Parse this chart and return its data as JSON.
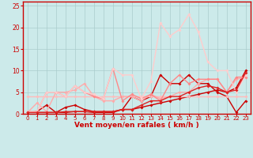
{
  "background_color": "#cceaea",
  "grid_color": "#aacccc",
  "xlabel": "Vent moyen/en rafales ( km/h )",
  "xlabel_color": "#cc0000",
  "tick_color": "#cc0000",
  "ylim": [
    0,
    26
  ],
  "xlim": [
    -0.5,
    23.5
  ],
  "yticks": [
    0,
    5,
    10,
    15,
    20,
    25
  ],
  "xticks": [
    0,
    1,
    2,
    3,
    4,
    5,
    6,
    7,
    8,
    9,
    10,
    11,
    12,
    13,
    14,
    15,
    16,
    17,
    18,
    19,
    20,
    21,
    22,
    23
  ],
  "series": [
    {
      "x": [
        0,
        1,
        2,
        3,
        4,
        5,
        6,
        7,
        8,
        9,
        10,
        11,
        12,
        13,
        14,
        15,
        16,
        17,
        18,
        19,
        20,
        21,
        22,
        23
      ],
      "y": [
        0.3,
        0.3,
        0.3,
        0.3,
        0.3,
        0.5,
        0.5,
        0.3,
        0.3,
        0.3,
        1,
        1,
        1.5,
        2,
        2.5,
        3,
        3.5,
        4,
        4.5,
        5,
        5.5,
        5,
        6,
        10
      ],
      "color": "#cc0000",
      "linewidth": 1.0
    },
    {
      "x": [
        0,
        1,
        2,
        3,
        4,
        5,
        6,
        7,
        8,
        9,
        10,
        11,
        12,
        13,
        14,
        15,
        16,
        17,
        18,
        19,
        20,
        21,
        22,
        23
      ],
      "y": [
        0.3,
        0.5,
        2,
        0.3,
        1.5,
        2,
        1,
        0.5,
        0.5,
        0.5,
        1,
        4,
        3,
        4,
        9,
        7,
        7,
        9,
        7,
        7,
        5,
        4,
        0.3,
        3
      ],
      "color": "#cc0000",
      "linewidth": 1.0
    },
    {
      "x": [
        0,
        1,
        2,
        3,
        4,
        5,
        6,
        7,
        8,
        9,
        10,
        11,
        12,
        13,
        14,
        15,
        16,
        17,
        18,
        19,
        20,
        21,
        22,
        23
      ],
      "y": [
        4,
        4,
        4,
        4,
        4,
        4,
        4,
        4,
        4,
        4,
        4,
        4,
        4,
        4,
        4,
        4,
        4,
        4,
        4,
        4,
        4,
        4,
        4,
        4
      ],
      "color": "#ffbbbb",
      "linewidth": 1.0
    },
    {
      "x": [
        0,
        1,
        2,
        3,
        4,
        5,
        6,
        7,
        8,
        9,
        10,
        11,
        12,
        13,
        14,
        15,
        16,
        17,
        18,
        19,
        20,
        21,
        22,
        23
      ],
      "y": [
        0.3,
        2.5,
        0.5,
        5,
        5,
        5.5,
        7,
        4,
        3,
        3,
        4,
        4,
        3,
        4.5,
        3.5,
        4,
        5,
        5,
        7,
        8,
        8,
        5,
        8,
        8.5
      ],
      "color": "#ffaaaa",
      "linewidth": 1.0
    },
    {
      "x": [
        0,
        1,
        2,
        3,
        4,
        5,
        6,
        7,
        8,
        9,
        10,
        11,
        12,
        13,
        14,
        15,
        16,
        17,
        18,
        19,
        20,
        21,
        22,
        23
      ],
      "y": [
        0.5,
        0.5,
        5,
        5,
        4,
        6.5,
        5,
        4,
        3.5,
        10.5,
        3,
        4.5,
        3.5,
        4.5,
        3,
        7,
        9,
        7,
        8,
        8,
        8,
        5,
        8.5,
        8.5
      ],
      "color": "#ff8888",
      "linewidth": 1.0
    },
    {
      "x": [
        0,
        1,
        2,
        3,
        4,
        5,
        6,
        7,
        8,
        9,
        10,
        11,
        12,
        13,
        14,
        15,
        16,
        17,
        18,
        19,
        20,
        21,
        22,
        23
      ],
      "y": [
        0.5,
        0.5,
        5,
        5,
        4,
        6.5,
        5,
        4.5,
        3.5,
        10.5,
        9,
        9,
        3.5,
        7.5,
        21,
        18,
        19.5,
        23,
        19,
        12,
        10,
        10,
        5,
        9
      ],
      "color": "#ffcccc",
      "linewidth": 1.0
    },
    {
      "x": [
        0,
        1,
        2,
        3,
        4,
        5,
        6,
        7,
        8,
        9,
        10,
        11,
        12,
        13,
        14,
        15,
        16,
        17,
        18,
        19,
        20,
        21,
        22,
        23
      ],
      "y": [
        0.3,
        0.3,
        0.3,
        0.3,
        0.5,
        0.5,
        0.5,
        0.5,
        0.5,
        0.5,
        1,
        1,
        2,
        3,
        3,
        4,
        4,
        5,
        6,
        6.5,
        6,
        5,
        5.5,
        9.5
      ],
      "color": "#dd2222",
      "linewidth": 1.0
    }
  ],
  "marker": "D",
  "markersize": 2.0
}
